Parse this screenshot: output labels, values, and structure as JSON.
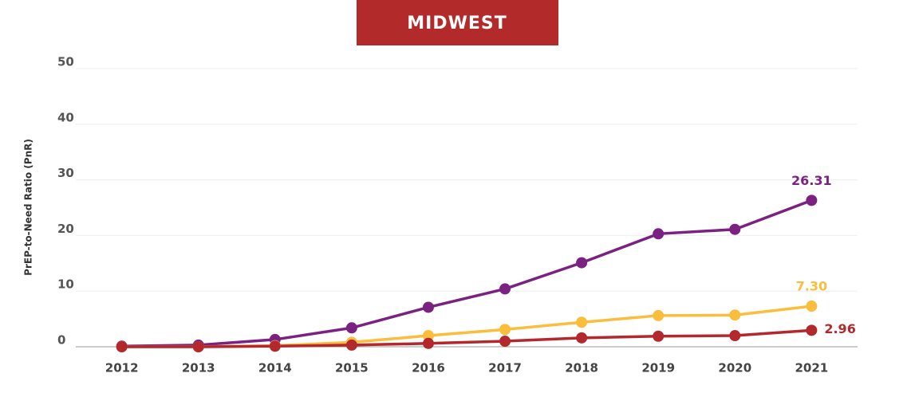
{
  "chart_data": {
    "type": "line",
    "title": "MIDWEST",
    "ylabel": "PrEP-to-Need Ratio (PnR)",
    "x": [
      2012,
      2013,
      2014,
      2015,
      2016,
      2017,
      2018,
      2019,
      2020,
      2021
    ],
    "series": [
      {
        "color": "#7b2182",
        "values": [
          0.1,
          0.3,
          1.3,
          3.4,
          7.1,
          10.4,
          15.1,
          20.3,
          21.1,
          26.31
        ],
        "value_labels": [
          null,
          null,
          null,
          null,
          null,
          null,
          null,
          null,
          null,
          "26.31"
        ]
      },
      {
        "color": "#fbbd3c",
        "values": [
          0,
          0,
          0.2,
          0.8,
          2.0,
          3.1,
          4.4,
          5.6,
          5.7,
          7.3
        ],
        "value_labels": [
          null,
          null,
          null,
          null,
          null,
          null,
          null,
          null,
          null,
          "7.30"
        ]
      },
      {
        "color": "#b3282d",
        "values": [
          0,
          0,
          0.1,
          0.3,
          0.6,
          1.0,
          1.6,
          1.9,
          2.0,
          2.96
        ],
        "value_labels": [
          null,
          null,
          null,
          null,
          null,
          null,
          null,
          null,
          null,
          "2.96"
        ]
      }
    ],
    "xlim": [
      2011.4,
      2021.6
    ],
    "ylim": [
      0,
      50
    ],
    "yticks": [
      0,
      10,
      20,
      30,
      40,
      50
    ],
    "grid": true
  }
}
